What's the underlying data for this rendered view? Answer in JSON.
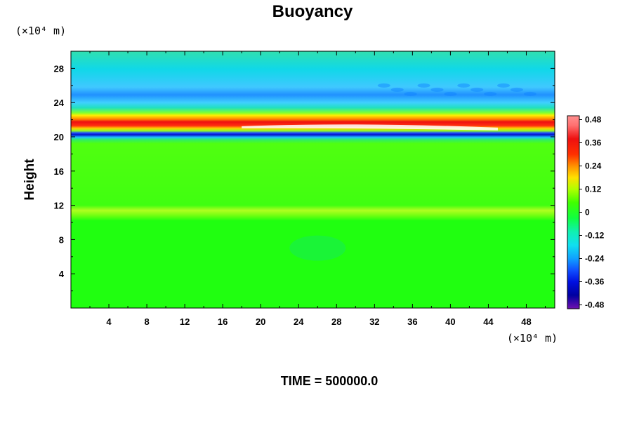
{
  "chart_data": {
    "type": "heatmap",
    "title": "Buoyancy",
    "ylabel": "Height",
    "xlabel": "",
    "x_unit": "(×10⁴ m)",
    "y_unit": "(×10⁴ m)",
    "xlim": [
      0,
      51
    ],
    "ylim": [
      0,
      30
    ],
    "x_ticks": [
      "4",
      "8",
      "12",
      "16",
      "20",
      "24",
      "28",
      "32",
      "36",
      "40",
      "44",
      "48"
    ],
    "y_ticks": [
      "4",
      "8",
      "12",
      "16",
      "20",
      "24",
      "28"
    ],
    "colorbar": {
      "min": -0.5,
      "max": 0.5,
      "labels": [
        "0.48",
        "0.36",
        "0.24",
        "0.12",
        "0",
        "-0.12",
        "-0.24",
        "-0.36",
        "-0.48"
      ]
    },
    "features": [
      {
        "height": 21.4,
        "value": 0.4
      },
      {
        "height": 20.3,
        "value": -0.38
      },
      {
        "height": 24.5,
        "value": -0.2
      },
      {
        "height": 26.5,
        "value": -0.15
      },
      {
        "height": 11.2,
        "value": 0.06
      }
    ],
    "background_value": 0.0
  },
  "footer": {
    "time_label": "TIME = 500000.0"
  },
  "colors": {
    "background": "#ffffff",
    "frame": "#000000"
  }
}
